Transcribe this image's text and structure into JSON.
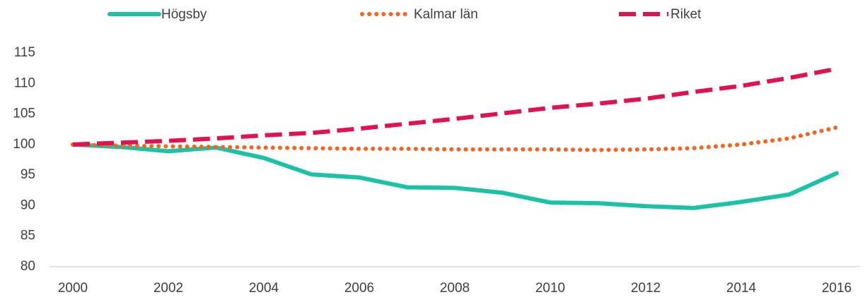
{
  "chart_data": {
    "type": "line",
    "x": [
      2000,
      2001,
      2002,
      2003,
      2004,
      2005,
      2006,
      2007,
      2008,
      2009,
      2010,
      2011,
      2012,
      2013,
      2014,
      2015,
      2016
    ],
    "xlim": [
      2000,
      2016
    ],
    "xticks": [
      2000,
      2002,
      2004,
      2006,
      2008,
      2010,
      2012,
      2014,
      2016
    ],
    "ylim": [
      80,
      115
    ],
    "yticks": [
      80,
      85,
      90,
      95,
      100,
      105,
      110,
      115
    ],
    "legend": "top",
    "series": [
      {
        "name": "Högsby",
        "color": "#1dc1a6",
        "style": "solid",
        "values": [
          100,
          99.6,
          98.9,
          99.5,
          97.8,
          95.1,
          94.6,
          93.0,
          92.9,
          92.1,
          90.5,
          90.4,
          89.9,
          89.6,
          90.6,
          91.8,
          95.3
        ]
      },
      {
        "name": "Kalmar län",
        "color": "#f26522",
        "style": "dotted",
        "values": [
          100,
          99.8,
          99.7,
          99.6,
          99.5,
          99.4,
          99.3,
          99.3,
          99.2,
          99.2,
          99.2,
          99.1,
          99.2,
          99.4,
          100.0,
          101.0,
          102.8
        ]
      },
      {
        "name": "Riket",
        "color": "#e0134f",
        "style": "dashed",
        "values": [
          100,
          100.3,
          100.6,
          101.0,
          101.5,
          101.9,
          102.6,
          103.4,
          104.2,
          105.1,
          106.0,
          106.7,
          107.5,
          108.6,
          109.6,
          110.9,
          112.4
        ]
      }
    ]
  }
}
